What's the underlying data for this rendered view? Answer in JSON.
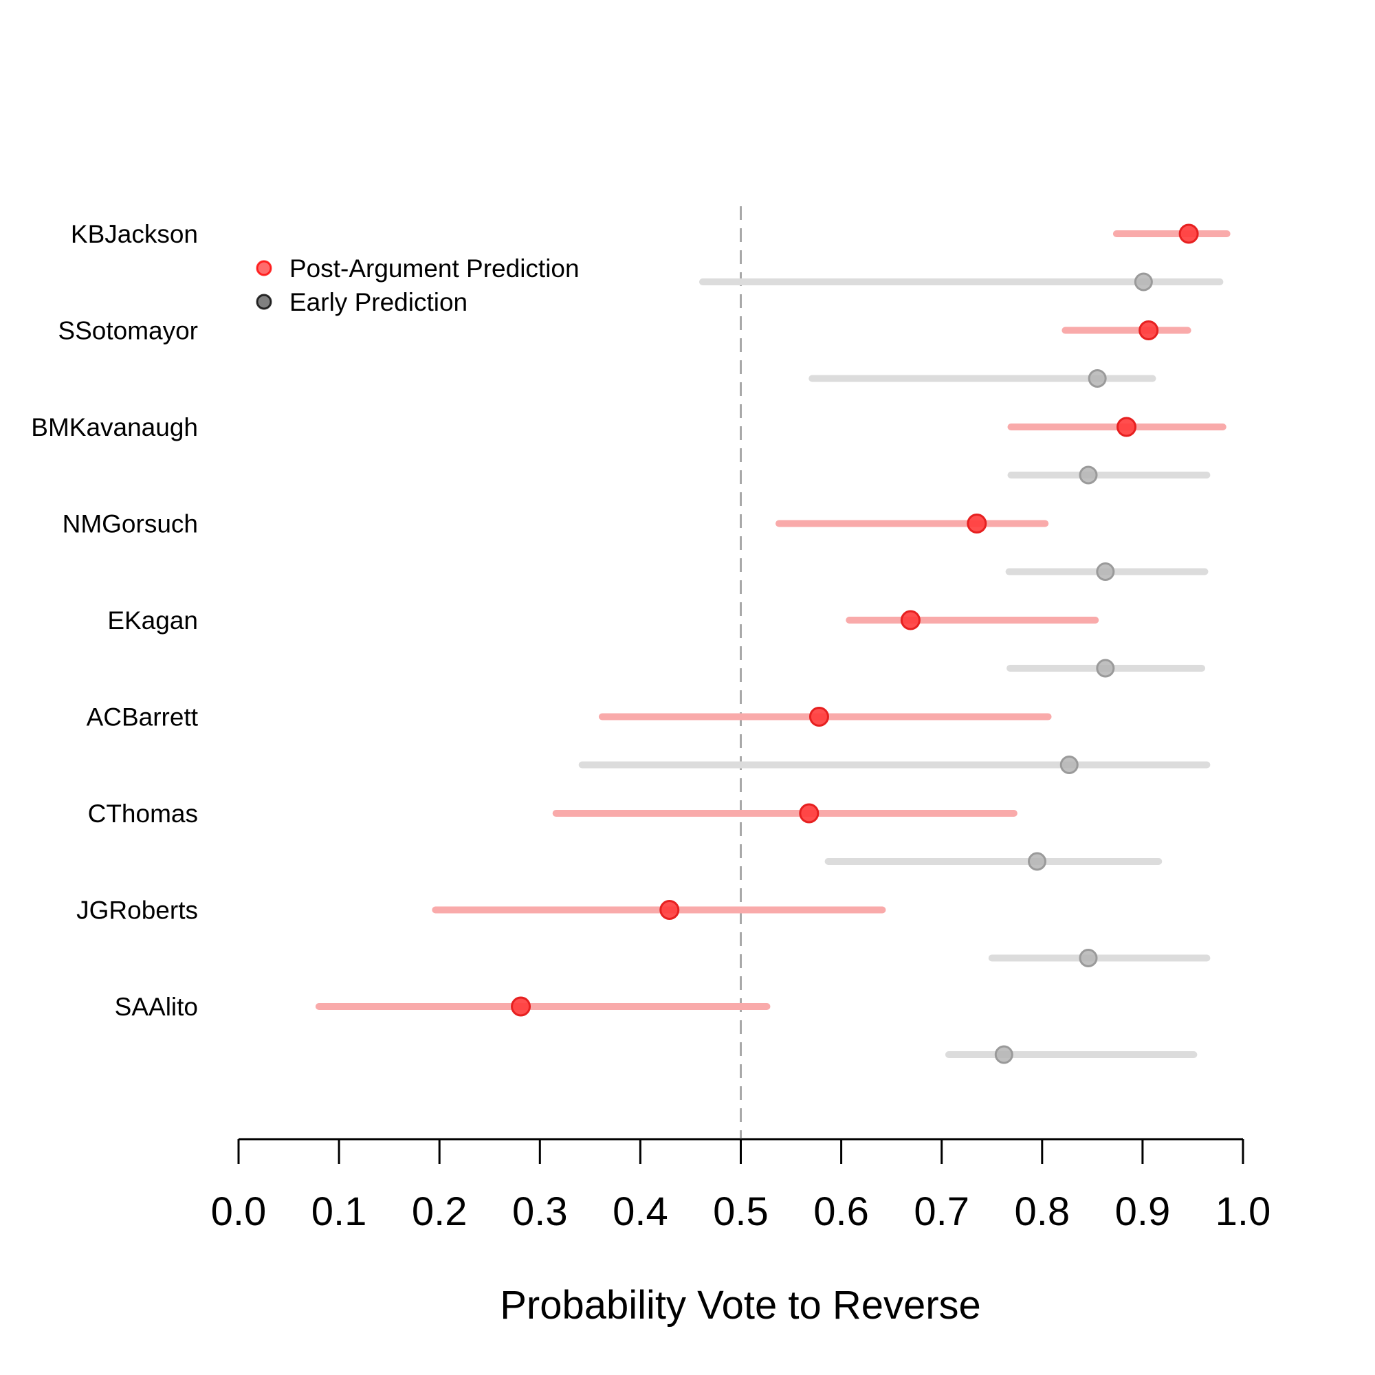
{
  "chart_data": {
    "type": "dot-interval",
    "xlabel": "Probability Vote to Reverse",
    "xlim": [
      0.0,
      1.0
    ],
    "reference_line": 0.5,
    "x_ticks": [
      "0.0",
      "0.1",
      "0.2",
      "0.3",
      "0.4",
      "0.5",
      "0.6",
      "0.7",
      "0.8",
      "0.9",
      "1.0"
    ],
    "legend": {
      "placement": "top-left",
      "entries": [
        {
          "name": "Post-Argument Prediction",
          "color": "#ff0000"
        },
        {
          "name": "Early Prediction",
          "color": "#000000"
        }
      ]
    },
    "colors": {
      "post_point": "#ff3b3b",
      "post_interval": "#f9aaaa",
      "early_point": "#b5b5b5",
      "early_interval": "#dcdcdc",
      "reference": "#a8a8a8"
    },
    "justices": [
      {
        "name": "KBJackson",
        "post": {
          "est": 0.946,
          "low": 0.874,
          "high": 0.984
        },
        "early": {
          "est": 0.901,
          "low": 0.462,
          "high": 0.977
        }
      },
      {
        "name": "SSotomayor",
        "post": {
          "est": 0.906,
          "low": 0.823,
          "high": 0.945
        },
        "early": {
          "est": 0.855,
          "low": 0.571,
          "high": 0.91
        }
      },
      {
        "name": "BMKavanaugh",
        "post": {
          "est": 0.884,
          "low": 0.769,
          "high": 0.98
        },
        "early": {
          "est": 0.846,
          "low": 0.769,
          "high": 0.964
        }
      },
      {
        "name": "NMGorsuch",
        "post": {
          "est": 0.735,
          "low": 0.538,
          "high": 0.803
        },
        "early": {
          "est": 0.863,
          "low": 0.767,
          "high": 0.962
        }
      },
      {
        "name": "EKagan",
        "post": {
          "est": 0.669,
          "low": 0.608,
          "high": 0.853
        },
        "early": {
          "est": 0.863,
          "low": 0.768,
          "high": 0.959
        }
      },
      {
        "name": "ACBarrett",
        "post": {
          "est": 0.578,
          "low": 0.362,
          "high": 0.806
        },
        "early": {
          "est": 0.827,
          "low": 0.342,
          "high": 0.964
        }
      },
      {
        "name": "CThomas",
        "post": {
          "est": 0.568,
          "low": 0.316,
          "high": 0.772
        },
        "early": {
          "est": 0.795,
          "low": 0.587,
          "high": 0.916
        }
      },
      {
        "name": "JGRoberts",
        "post": {
          "est": 0.429,
          "low": 0.196,
          "high": 0.641
        },
        "early": {
          "est": 0.846,
          "low": 0.75,
          "high": 0.964
        }
      },
      {
        "name": "SAAlito",
        "post": {
          "est": 0.281,
          "low": 0.08,
          "high": 0.526
        },
        "early": {
          "est": 0.762,
          "low": 0.707,
          "high": 0.951
        }
      }
    ]
  }
}
